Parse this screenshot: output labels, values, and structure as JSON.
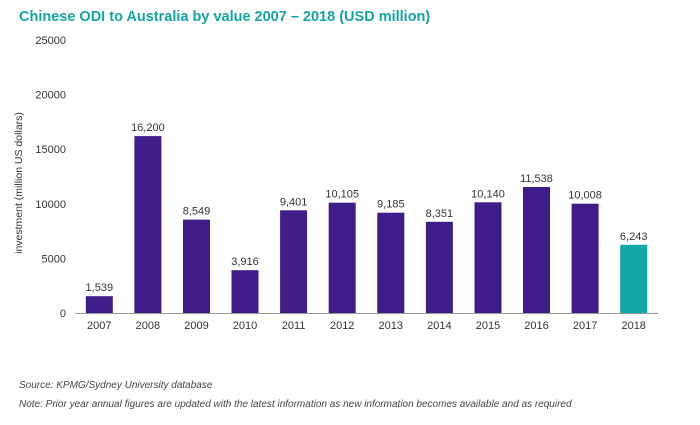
{
  "title": "Chinese ODI to Australia by value 2007 – 2018 (USD million)",
  "source": "Source: KPMG/Sydney University database",
  "note": "Note: Prior year annual figures are updated with the latest information as new information becomes available and as required",
  "chart_data": {
    "type": "bar",
    "title": "Chinese ODI to Australia by value 2007 – 2018 (USD million)",
    "xlabel": "",
    "ylabel": "investment (million US dollars)",
    "ylim": [
      0,
      25000
    ],
    "yticks": [
      0,
      5000,
      10000,
      15000,
      20000,
      25000
    ],
    "ytick_labels": [
      "0",
      "5000",
      "10000",
      "15000",
      "20000",
      "25000"
    ],
    "grid": false,
    "categories": [
      "2007",
      "2008",
      "2009",
      "2010",
      "2011",
      "2012",
      "2013",
      "2014",
      "2015",
      "2016",
      "2017",
      "2018"
    ],
    "values": [
      1539,
      16200,
      8549,
      3916,
      9401,
      10105,
      9185,
      8351,
      10140,
      11538,
      10008,
      6243
    ],
    "value_labels": [
      "1,539",
      "16,200",
      "8,549",
      "3,916",
      "9,401",
      "10,105",
      "9,185",
      "8,351",
      "10,140",
      "11,538",
      "10,008",
      "6,243"
    ],
    "colors": {
      "default": "#3f1c87",
      "highlight": "#13a6a6",
      "highlight_category": "2018",
      "axis": "#999999",
      "text": "#333333"
    }
  }
}
